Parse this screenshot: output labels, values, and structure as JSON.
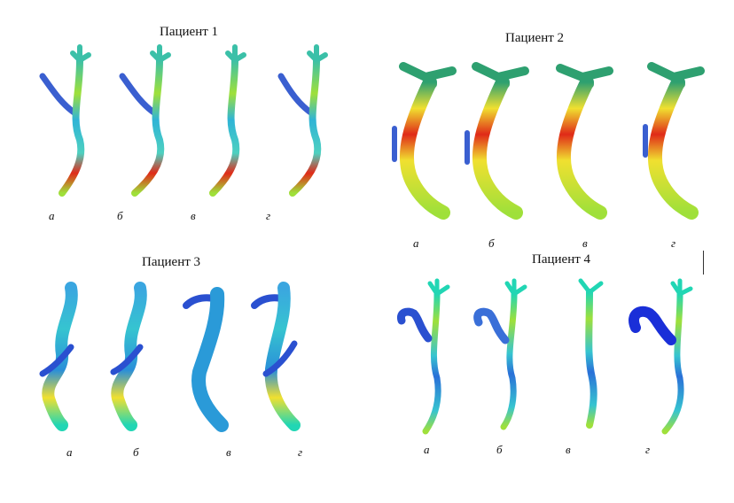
{
  "panels": [
    {
      "title": "Пациент 1",
      "labels": [
        "а",
        "б",
        "в",
        "г"
      ]
    },
    {
      "title": "Пациент 2",
      "labels": [
        "а",
        "б",
        "в",
        "г"
      ]
    },
    {
      "title": "Пациент 3",
      "labels": [
        "а",
        "б",
        "в",
        "г"
      ]
    },
    {
      "title": "Пациент 4",
      "labels": [
        "а",
        "б",
        "в",
        "г"
      ]
    }
  ],
  "colors": {
    "low": "#1f3fd8",
    "mid_low": "#3aa6e0",
    "mid": "#21d6b4",
    "mid_high": "#9fe03a",
    "high_mid": "#f0e030",
    "high": "#e02a18"
  }
}
